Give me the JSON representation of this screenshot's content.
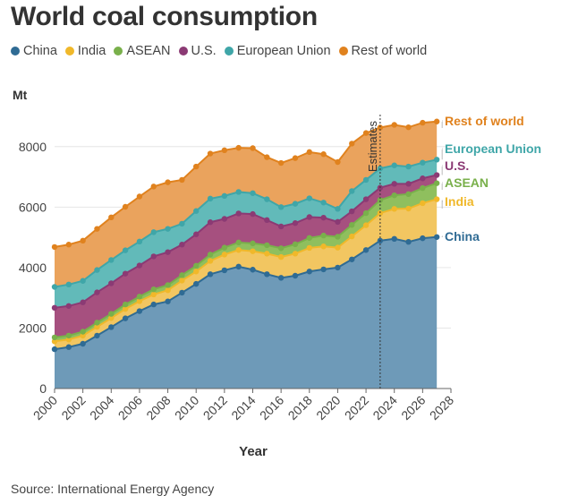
{
  "title": "World coal consumption",
  "source": "Source: International Energy Agency",
  "chart_data": {
    "type": "area",
    "stacked": true,
    "title": "World coal consumption",
    "xlabel": "Year",
    "ylabel": "Mt",
    "xlim": [
      2000,
      2028
    ],
    "ylim": [
      0,
      9000
    ],
    "xticks": [
      2000,
      2002,
      2004,
      2006,
      2008,
      2010,
      2012,
      2014,
      2016,
      2018,
      2020,
      2022,
      2024,
      2026,
      2028
    ],
    "yticks": [
      0,
      2000,
      4000,
      6000,
      8000
    ],
    "grid": true,
    "legend_position": "top",
    "annotation": {
      "label": "Estimates",
      "x": 2023
    },
    "x": [
      2000,
      2001,
      2002,
      2003,
      2004,
      2005,
      2006,
      2007,
      2008,
      2009,
      2010,
      2011,
      2012,
      2013,
      2014,
      2015,
      2016,
      2017,
      2018,
      2019,
      2020,
      2021,
      2022,
      2023,
      2024,
      2025,
      2026,
      2027
    ],
    "series": [
      {
        "name": "China",
        "color": "#2f6b94",
        "fill": "#6e9ab8",
        "values": [
          1300,
          1370,
          1480,
          1750,
          2030,
          2320,
          2560,
          2780,
          2880,
          3170,
          3460,
          3780,
          3910,
          4030,
          3930,
          3780,
          3660,
          3730,
          3870,
          3940,
          4000,
          4270,
          4580,
          4890,
          4950,
          4850,
          4970,
          5010
        ]
      },
      {
        "name": "India",
        "color": "#f0b82a",
        "fill": "#f2c661",
        "values": [
          1560,
          1620,
          1750,
          2040,
          2330,
          2630,
          2890,
          3110,
          3250,
          3570,
          3870,
          4220,
          4430,
          4580,
          4540,
          4460,
          4350,
          4460,
          4650,
          4700,
          4660,
          5030,
          5400,
          5800,
          5940,
          5950,
          6130,
          6260
        ]
      },
      {
        "name": "ASEAN",
        "color": "#79b04b",
        "fill": "#8fbf5e",
        "values": [
          1690,
          1750,
          1880,
          2180,
          2470,
          2780,
          3040,
          3280,
          3420,
          3750,
          4060,
          4430,
          4660,
          4830,
          4800,
          4740,
          4640,
          4770,
          4980,
          5060,
          5020,
          5410,
          5800,
          6230,
          6390,
          6430,
          6630,
          6790
        ]
      },
      {
        "name": "U.S.",
        "color": "#8b3a74",
        "fill": "#a6507f",
        "values": [
          2670,
          2730,
          2850,
          3180,
          3480,
          3800,
          4070,
          4370,
          4510,
          4760,
          5100,
          5500,
          5610,
          5790,
          5770,
          5570,
          5360,
          5470,
          5670,
          5650,
          5510,
          5860,
          6260,
          6640,
          6770,
          6770,
          6950,
          7060
        ]
      },
      {
        "name": "European Union",
        "color": "#3fa6a8",
        "fill": "#62bab9",
        "values": [
          3360,
          3440,
          3560,
          3920,
          4250,
          4570,
          4860,
          5170,
          5280,
          5450,
          5870,
          6280,
          6370,
          6500,
          6460,
          6260,
          6000,
          6110,
          6290,
          6150,
          5940,
          6530,
          6900,
          7280,
          7380,
          7340,
          7470,
          7570
        ]
      },
      {
        "name": "Rest of world",
        "color": "#e0821e",
        "fill": "#eaa35d",
        "values": [
          4680,
          4760,
          4890,
          5280,
          5660,
          6010,
          6350,
          6680,
          6820,
          6900,
          7340,
          7770,
          7880,
          7960,
          7950,
          7650,
          7460,
          7620,
          7820,
          7750,
          7490,
          8100,
          8450,
          8630,
          8720,
          8640,
          8790,
          8830
        ]
      }
    ]
  }
}
